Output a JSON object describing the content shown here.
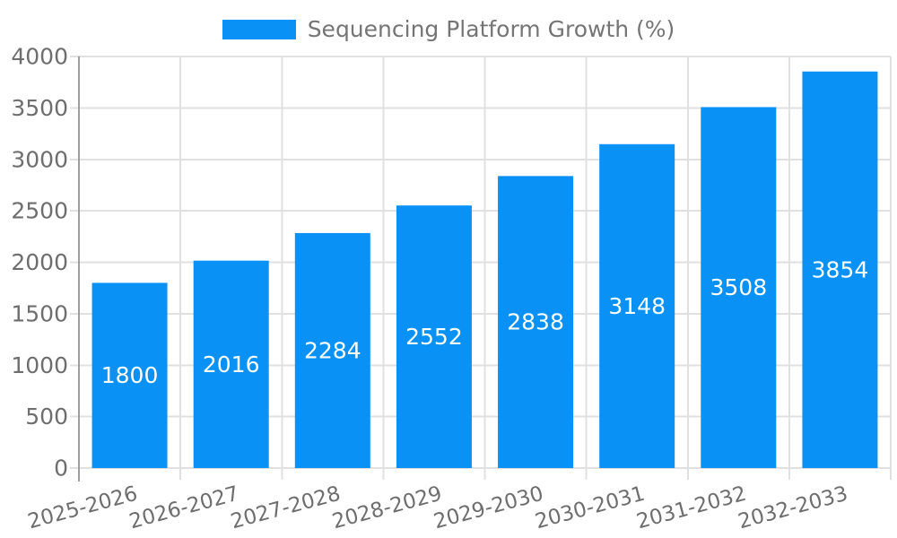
{
  "chart_data": {
    "type": "bar",
    "title": "Sequencing Platform Growth (%)",
    "categories": [
      "2025-2026",
      "2026-2027",
      "2027-2028",
      "2028-2029",
      "2029-2030",
      "2030-2031",
      "2031-2032",
      "2032-2033"
    ],
    "values": [
      1800,
      2016,
      2284,
      2552,
      2838,
      3148,
      3508,
      3854
    ],
    "yticks": [
      0,
      500,
      1000,
      1500,
      2000,
      2500,
      3000,
      3500,
      4000
    ],
    "ylim": [
      0,
      4000
    ],
    "xlabel": "",
    "ylabel": "",
    "grid": true,
    "legend_position": "top-center",
    "colors": {
      "bar": "#0a91f5",
      "value_label": "#ffffff",
      "grid": "#e0e0e0",
      "axis": "#9e9e9e",
      "tick_label": "#6e6e6e",
      "legend_text": "#757575",
      "background": "#ffffff"
    }
  }
}
